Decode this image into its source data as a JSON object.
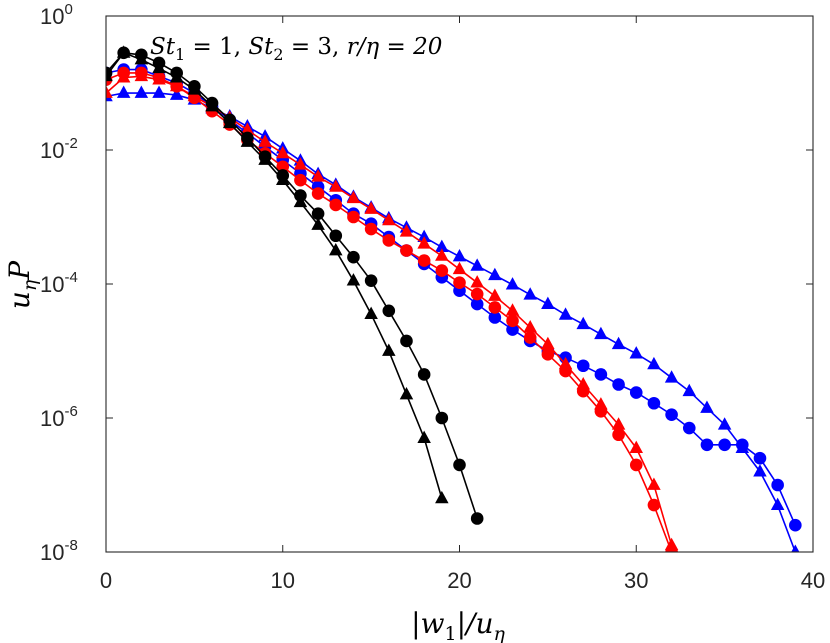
{
  "chart_data": {
    "type": "line",
    "title": "",
    "annotation": {
      "st1_symbol": "St",
      "st1_sub": "1",
      "st1_value": " = 1, ",
      "st2_symbol": "St",
      "st2_sub": "2",
      "st2_value": " = 3, ",
      "ratio_text": "r/η = 20"
    },
    "xlabel": {
      "left_bar": "|",
      "var": "w",
      "sub": "1",
      "right": "|/u",
      "sub2": "η"
    },
    "ylabel": {
      "var": "u",
      "sub": "η",
      "tail": "P"
    },
    "xlim": [
      0,
      40
    ],
    "ylim_log10": [
      -8,
      0
    ],
    "yscale": "log",
    "x_ticks": [
      0,
      10,
      20,
      30,
      40
    ],
    "x_tick_labels": [
      "0",
      "10",
      "20",
      "30",
      "40"
    ],
    "y_ticks_log10": [
      -8,
      -6,
      -4,
      -2,
      0
    ],
    "y_tick_base": "10",
    "y_tick_exponents": [
      "-8",
      "-6",
      "-4",
      "-2",
      "0"
    ],
    "series": [
      {
        "name": "blue-triangle",
        "color": "#0000ff",
        "marker": "triangle",
        "x": [
          0,
          1,
          2,
          3,
          4,
          5,
          6,
          7,
          8,
          9,
          10,
          11,
          12,
          13,
          14,
          15,
          16,
          17,
          18,
          19,
          20,
          21,
          22,
          23,
          24,
          25,
          26,
          27,
          28,
          29,
          30,
          31,
          32,
          33,
          34,
          35,
          36,
          37,
          38,
          39
        ],
        "log10_y": [
          -1.2,
          -1.15,
          -1.15,
          -1.15,
          -1.18,
          -1.25,
          -1.38,
          -1.5,
          -1.65,
          -1.8,
          -1.98,
          -2.16,
          -2.36,
          -2.52,
          -2.7,
          -2.86,
          -3.02,
          -3.16,
          -3.3,
          -3.45,
          -3.59,
          -3.73,
          -3.87,
          -4.01,
          -4.16,
          -4.3,
          -4.46,
          -4.6,
          -4.75,
          -4.9,
          -5.04,
          -5.2,
          -5.4,
          -5.6,
          -5.85,
          -6.1,
          -6.45,
          -6.8,
          -7.3,
          -8.0
        ]
      },
      {
        "name": "blue-circle",
        "color": "#0000ff",
        "marker": "circle",
        "x": [
          0,
          1,
          2,
          3,
          4,
          5,
          6,
          7,
          8,
          9,
          10,
          11,
          12,
          13,
          14,
          15,
          16,
          17,
          18,
          19,
          20,
          21,
          22,
          23,
          24,
          25,
          26,
          27,
          28,
          29,
          30,
          31,
          32,
          33,
          34,
          35,
          36,
          37,
          38,
          39
        ],
        "log10_y": [
          -0.85,
          -0.8,
          -0.8,
          -0.9,
          -1.0,
          -1.15,
          -1.35,
          -1.55,
          -1.75,
          -1.95,
          -2.15,
          -2.35,
          -2.55,
          -2.75,
          -2.95,
          -3.1,
          -3.3,
          -3.5,
          -3.7,
          -3.9,
          -4.1,
          -4.3,
          -4.5,
          -4.68,
          -4.85,
          -5.0,
          -5.1,
          -5.22,
          -5.35,
          -5.5,
          -5.62,
          -5.78,
          -5.95,
          -6.15,
          -6.4,
          -6.4,
          -6.4,
          -6.6,
          -7.0,
          -7.6
        ]
      },
      {
        "name": "red-triangle",
        "color": "#ff0000",
        "marker": "triangle",
        "x": [
          0,
          1,
          2,
          3,
          4,
          5,
          6,
          7,
          8,
          9,
          10,
          11,
          12,
          13,
          14,
          15,
          16,
          17,
          18,
          19,
          20,
          21,
          22,
          23,
          24,
          25,
          26,
          27,
          28,
          29,
          30,
          31,
          32
        ],
        "log10_y": [
          -1.15,
          -0.92,
          -0.9,
          -0.95,
          -1.05,
          -1.2,
          -1.35,
          -1.52,
          -1.7,
          -1.88,
          -2.05,
          -2.22,
          -2.4,
          -2.55,
          -2.72,
          -2.88,
          -3.05,
          -3.22,
          -3.4,
          -3.58,
          -3.78,
          -3.98,
          -4.18,
          -4.4,
          -4.65,
          -4.9,
          -5.2,
          -5.5,
          -5.8,
          -6.1,
          -6.45,
          -7.0,
          -7.9
        ]
      },
      {
        "name": "red-circle",
        "color": "#ff0000",
        "marker": "circle",
        "x": [
          0,
          1,
          2,
          3,
          4,
          5,
          6,
          7,
          8,
          9,
          10,
          11,
          12,
          13,
          14,
          15,
          16,
          17,
          18,
          19,
          20,
          21,
          22,
          23,
          24,
          25,
          26,
          27,
          28,
          29,
          30,
          31,
          32
        ],
        "log10_y": [
          -0.95,
          -0.85,
          -0.85,
          -0.92,
          -1.05,
          -1.22,
          -1.42,
          -1.62,
          -1.85,
          -2.05,
          -2.25,
          -2.45,
          -2.65,
          -2.82,
          -3.0,
          -3.18,
          -3.35,
          -3.5,
          -3.65,
          -3.8,
          -3.98,
          -4.15,
          -4.35,
          -4.55,
          -4.8,
          -5.05,
          -5.3,
          -5.6,
          -5.9,
          -6.25,
          -6.7,
          -7.3,
          -8.0
        ]
      },
      {
        "name": "black-triangle",
        "color": "#000000",
        "marker": "triangle",
        "x": [
          0,
          1,
          2,
          3,
          4,
          5,
          6,
          7,
          8,
          9,
          10,
          11,
          12,
          13,
          14,
          15,
          16,
          17,
          18,
          19
        ],
        "log10_y": [
          -0.9,
          -0.55,
          -0.65,
          -0.78,
          -0.92,
          -1.1,
          -1.35,
          -1.6,
          -1.88,
          -2.15,
          -2.45,
          -2.78,
          -3.12,
          -3.5,
          -3.95,
          -4.45,
          -5.0,
          -5.65,
          -6.3,
          -7.2
        ]
      },
      {
        "name": "black-circle",
        "color": "#000000",
        "marker": "circle",
        "x": [
          0,
          1,
          2,
          3,
          4,
          5,
          6,
          7,
          8,
          9,
          10,
          11,
          12,
          13,
          14,
          15,
          16,
          17,
          18,
          19,
          20,
          21
        ],
        "log10_y": [
          -0.85,
          -0.55,
          -0.58,
          -0.7,
          -0.85,
          -1.05,
          -1.3,
          -1.55,
          -1.82,
          -2.1,
          -2.38,
          -2.68,
          -2.95,
          -3.28,
          -3.6,
          -3.95,
          -4.4,
          -4.85,
          -5.35,
          -6.0,
          -6.7,
          -7.5
        ]
      }
    ]
  }
}
